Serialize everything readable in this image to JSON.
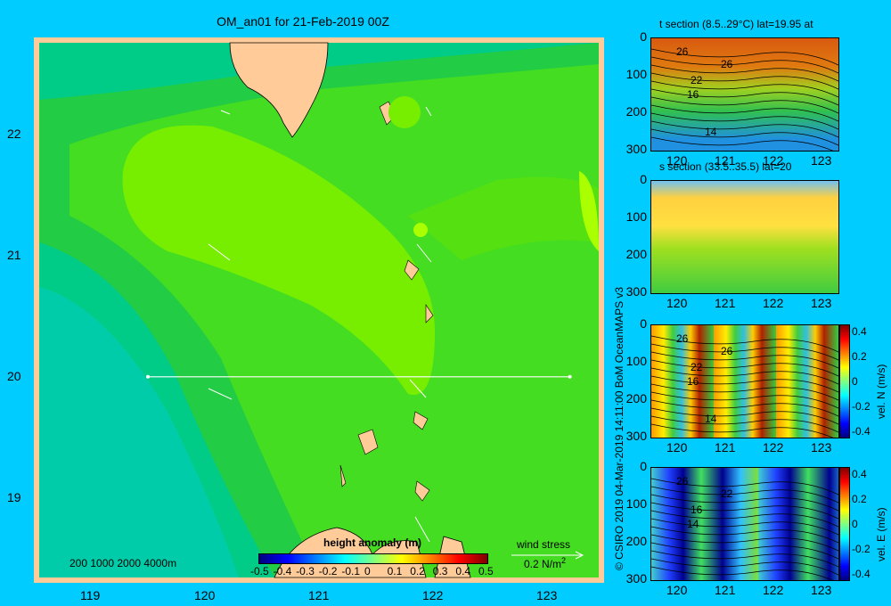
{
  "map": {
    "title": "OM_an01 for 21-Feb-2019 00Z",
    "x_ticks": [
      "119",
      "120",
      "121",
      "122",
      "123"
    ],
    "y_ticks": [
      "22",
      "21",
      "20",
      "19"
    ],
    "depth_legend": "200  1000  2000  4000m",
    "colorbar_title": "height anomaly (m)",
    "colorbar_ticks": [
      "-0.5",
      "-0.4",
      "-0.3",
      "-0.2",
      "-0.1",
      "0",
      "0.1",
      "0.2",
      "0.3",
      "0.4",
      "0.5"
    ],
    "wind_label": "wind stress",
    "wind_scale": "0.2 N/m",
    "wind_scale_exp": "2",
    "section_lat": 20,
    "section_lon_range": [
      119.5,
      123.2
    ]
  },
  "credit": "© CSIRO 2019   04-Mar-2019 14:11:00 BoM OceanMAPS v3",
  "panels": [
    {
      "title": "t section (8.5..29°C) lat=19.95 at",
      "y_ticks": [
        "0",
        "100",
        "200",
        "300"
      ],
      "x_ticks": [
        "120",
        "121",
        "122",
        "123"
      ],
      "contour_labels": [
        "26",
        "26",
        "22",
        "16",
        "14"
      ]
    },
    {
      "title": "s section (33.5..35.5) lat=20",
      "y_ticks": [
        "0",
        "100",
        "200",
        "300"
      ],
      "x_ticks": [
        "120",
        "121",
        "122",
        "123"
      ],
      "contour_labels": []
    },
    {
      "title": "",
      "y_ticks": [
        "0",
        "100",
        "200",
        "300"
      ],
      "x_ticks": [
        "120",
        "121",
        "122",
        "123"
      ],
      "contour_labels": [
        "26",
        "26",
        "22",
        "16",
        "14"
      ],
      "colorbar_ticks": [
        "0.4",
        "0.2",
        "0",
        "-0.2",
        "-0.4"
      ],
      "colorbar_label": "vel. N (m/s)"
    },
    {
      "title": "",
      "y_ticks": [
        "0",
        "100",
        "200",
        "300"
      ],
      "x_ticks": [
        "120",
        "121",
        "122",
        "123"
      ],
      "contour_labels": [
        "26",
        "22",
        "16",
        "14"
      ],
      "colorbar_ticks": [
        "0.4",
        "0.2",
        "0",
        "-0.2",
        "-0.4"
      ],
      "colorbar_label": "vel. E (m/s)"
    }
  ],
  "colors": {
    "background": "#00ccff",
    "land": "#ffcc99",
    "field_low": "#00cc88",
    "field_mid": "#44dd22",
    "field_high": "#77ee00"
  }
}
